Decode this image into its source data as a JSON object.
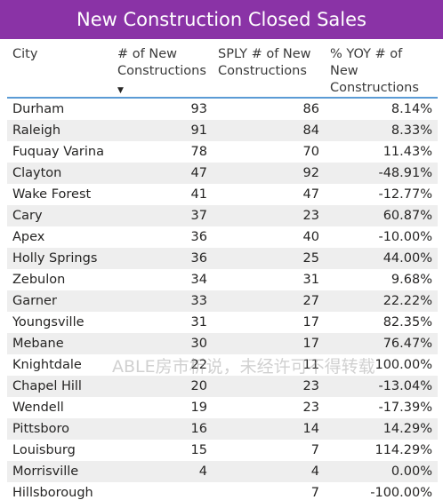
{
  "title": "New Construction Closed Sales",
  "watermark": "ABLE房市析说，未经许可不得转载",
  "chart_data": {
    "type": "table",
    "columns": [
      "City",
      "# of New Constructions",
      "SPLY # of New Constructions",
      "% YOY # of New Constructions"
    ],
    "sorted_by": "# of New Constructions",
    "sort_order": "descending",
    "rows": [
      {
        "city": "Durham",
        "new": "93",
        "sply": "86",
        "yoy": "8.14%"
      },
      {
        "city": "Raleigh",
        "new": "91",
        "sply": "84",
        "yoy": "8.33%"
      },
      {
        "city": "Fuquay Varina",
        "new": "78",
        "sply": "70",
        "yoy": "11.43%"
      },
      {
        "city": "Clayton",
        "new": "47",
        "sply": "92",
        "yoy": "-48.91%"
      },
      {
        "city": "Wake Forest",
        "new": "41",
        "sply": "47",
        "yoy": "-12.77%"
      },
      {
        "city": "Cary",
        "new": "37",
        "sply": "23",
        "yoy": "60.87%"
      },
      {
        "city": "Apex",
        "new": "36",
        "sply": "40",
        "yoy": "-10.00%"
      },
      {
        "city": "Holly Springs",
        "new": "36",
        "sply": "25",
        "yoy": "44.00%"
      },
      {
        "city": "Zebulon",
        "new": "34",
        "sply": "31",
        "yoy": "9.68%"
      },
      {
        "city": "Garner",
        "new": "33",
        "sply": "27",
        "yoy": "22.22%"
      },
      {
        "city": "Youngsville",
        "new": "31",
        "sply": "17",
        "yoy": "82.35%"
      },
      {
        "city": "Mebane",
        "new": "30",
        "sply": "17",
        "yoy": "76.47%"
      },
      {
        "city": "Knightdale",
        "new": "22",
        "sply": "11",
        "yoy": "100.00%"
      },
      {
        "city": "Chapel Hill",
        "new": "20",
        "sply": "23",
        "yoy": "-13.04%"
      },
      {
        "city": "Wendell",
        "new": "19",
        "sply": "23",
        "yoy": "-17.39%"
      },
      {
        "city": "Pittsboro",
        "new": "16",
        "sply": "14",
        "yoy": "14.29%"
      },
      {
        "city": "Louisburg",
        "new": "15",
        "sply": "7",
        "yoy": "114.29%"
      },
      {
        "city": "Morrisville",
        "new": "4",
        "sply": "4",
        "yoy": "0.00%"
      },
      {
        "city": "Hillsborough",
        "new": "",
        "sply": "7",
        "yoy": "-100.00%"
      }
    ]
  },
  "colors": {
    "title_background": "#8a33a6",
    "title_text": "#ffffff",
    "header_rule": "#5b9bd5",
    "alt_row": "#eeeeee"
  },
  "sort_icon": "triangle-down-icon"
}
